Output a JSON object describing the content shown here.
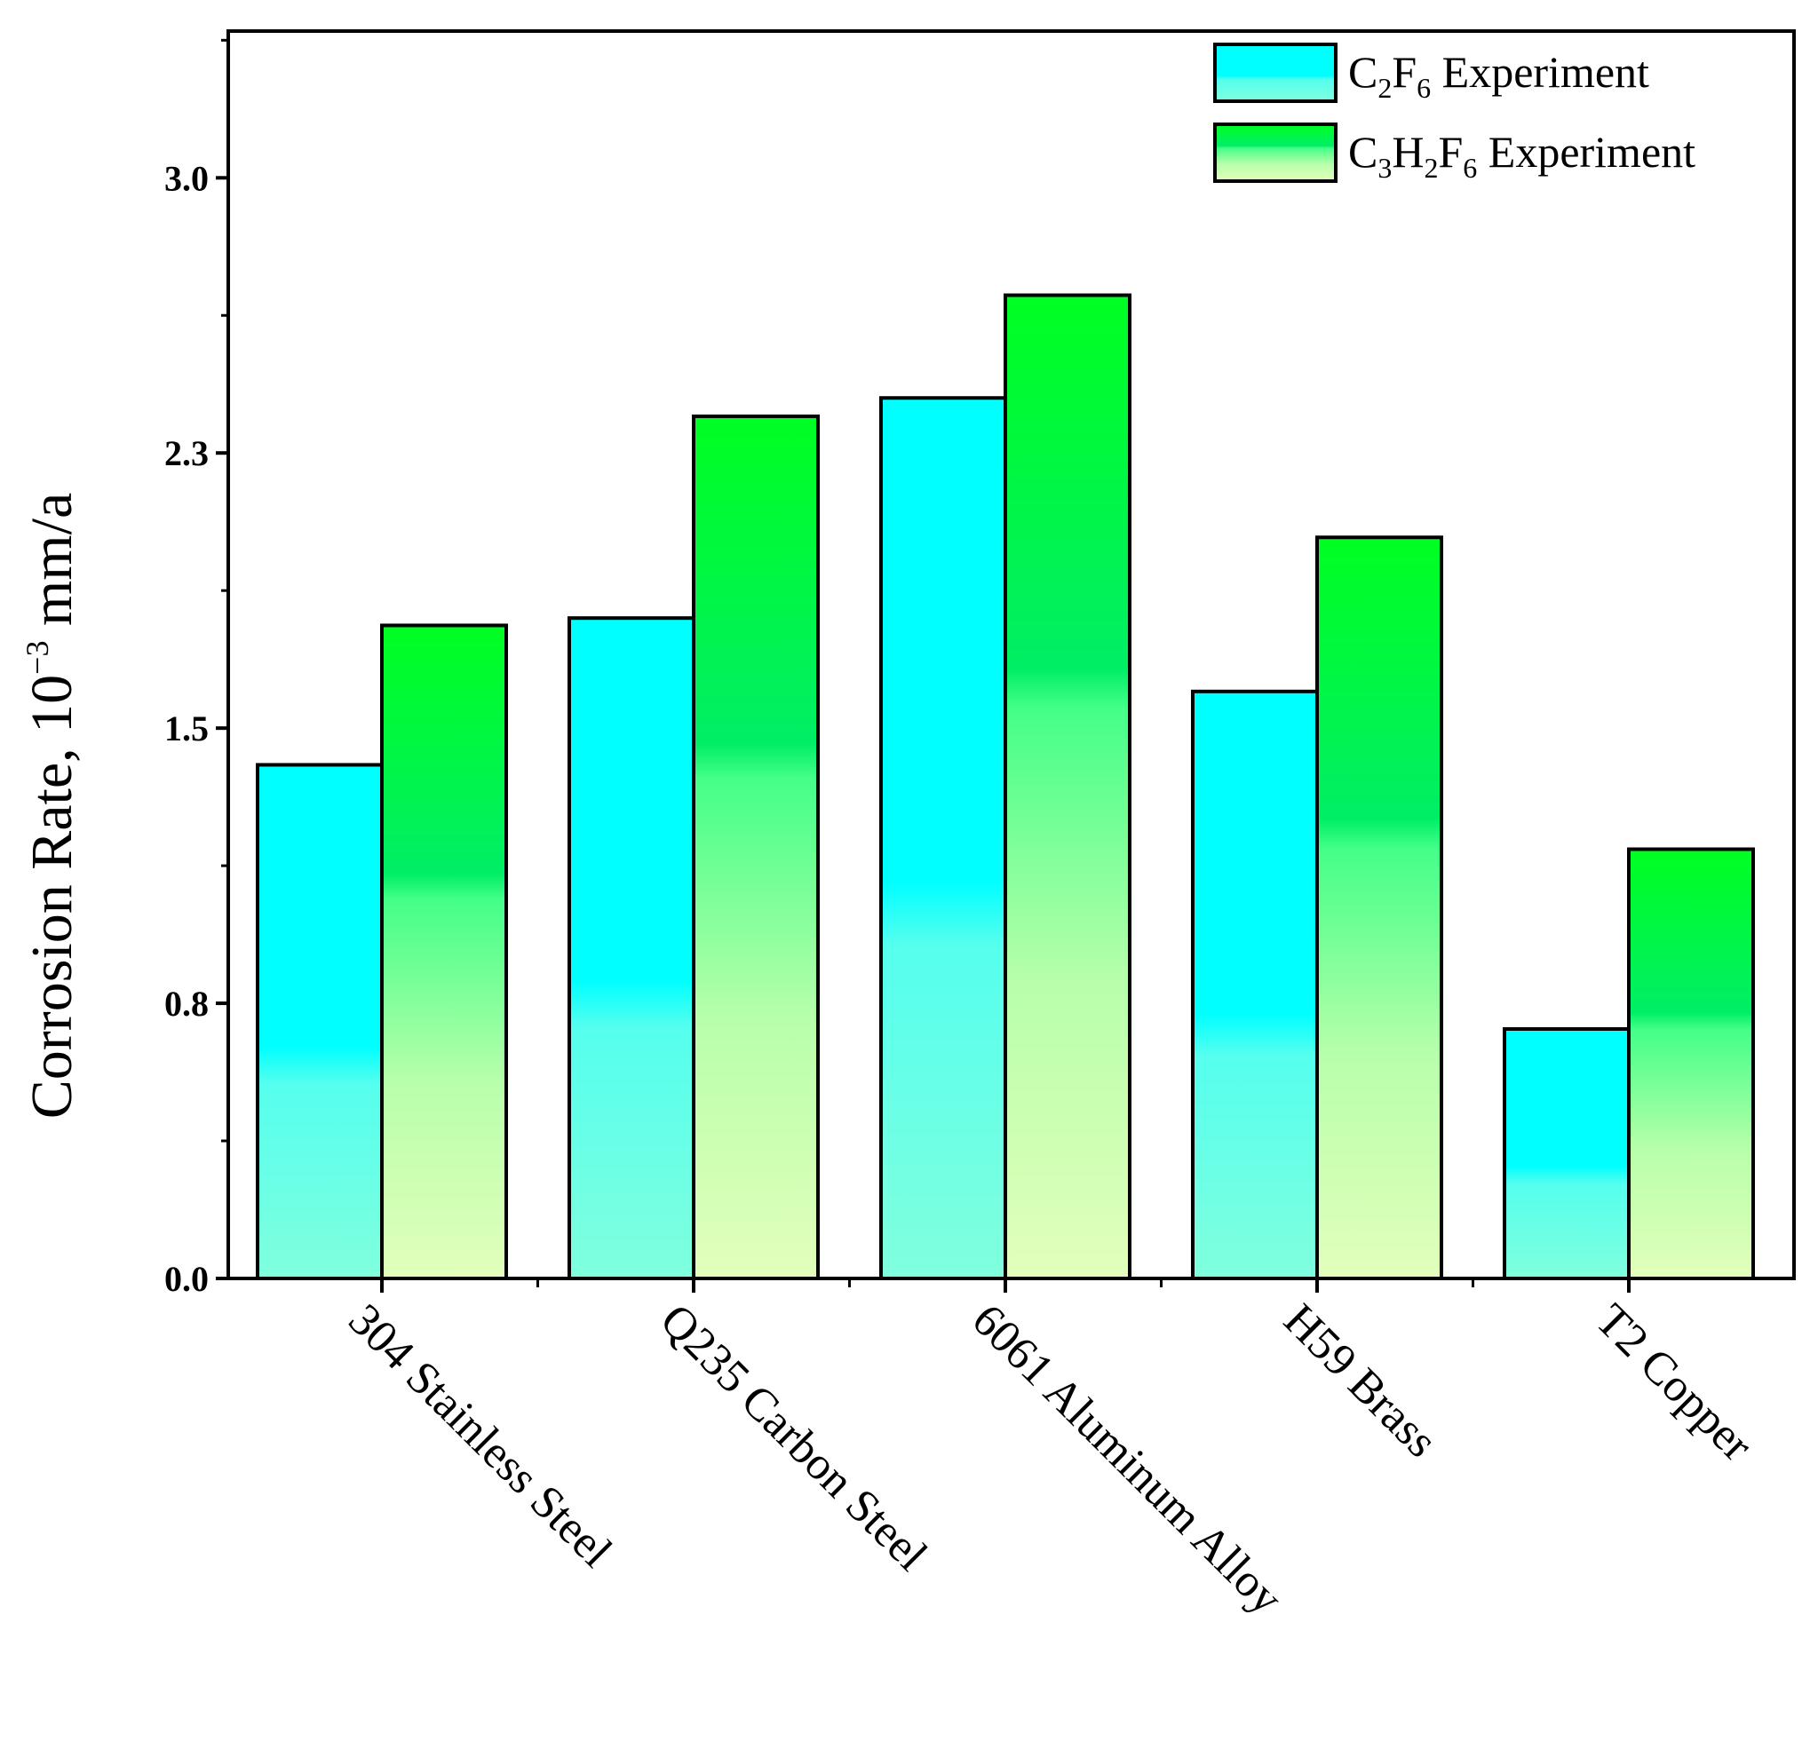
{
  "chart_data": {
    "type": "bar",
    "title": "",
    "xlabel": "",
    "ylabel": "Corrosion Rate, 10⁻³ mm/a",
    "ylabel_parts": {
      "main": "Corrosion Rate, 10",
      "exp": "−3",
      "unit": " mm/a"
    },
    "ylim": [
      0,
      3.4
    ],
    "yticks": [
      "0.0",
      "0.8",
      "1.5",
      "2.3",
      "3.0"
    ],
    "ytick_values": [
      0,
      0.75,
      1.5,
      2.25,
      3.0
    ],
    "categories": [
      "304 Stainless Steel",
      "Q235 Carbon Steel",
      "6061 Aluminum Alloy",
      "H59 Brass",
      "T2 Copper"
    ],
    "series": [
      {
        "name": "C2F6 Experiment",
        "label_parts": [
          {
            "t": "C"
          },
          {
            "t": "2",
            "sub": true
          },
          {
            "t": "F"
          },
          {
            "t": "6",
            "sub": true
          },
          {
            "t": " Experiment"
          }
        ],
        "values": [
          1.4,
          1.8,
          2.4,
          1.6,
          0.68
        ],
        "color_top": "#00ffff",
        "color_bottom": "#7fffdf"
      },
      {
        "name": "C3H2F6 Experiment",
        "label_parts": [
          {
            "t": "C"
          },
          {
            "t": "3",
            "sub": true
          },
          {
            "t": "H"
          },
          {
            "t": "2",
            "sub": true
          },
          {
            "t": "F"
          },
          {
            "t": "6",
            "sub": true
          },
          {
            "t": " Experiment"
          }
        ],
        "values": [
          1.78,
          2.35,
          2.68,
          2.02,
          1.17
        ],
        "color_top": "#00ff33",
        "color_bottom": "#ddffbb"
      }
    ],
    "legend_position": "top-right"
  }
}
